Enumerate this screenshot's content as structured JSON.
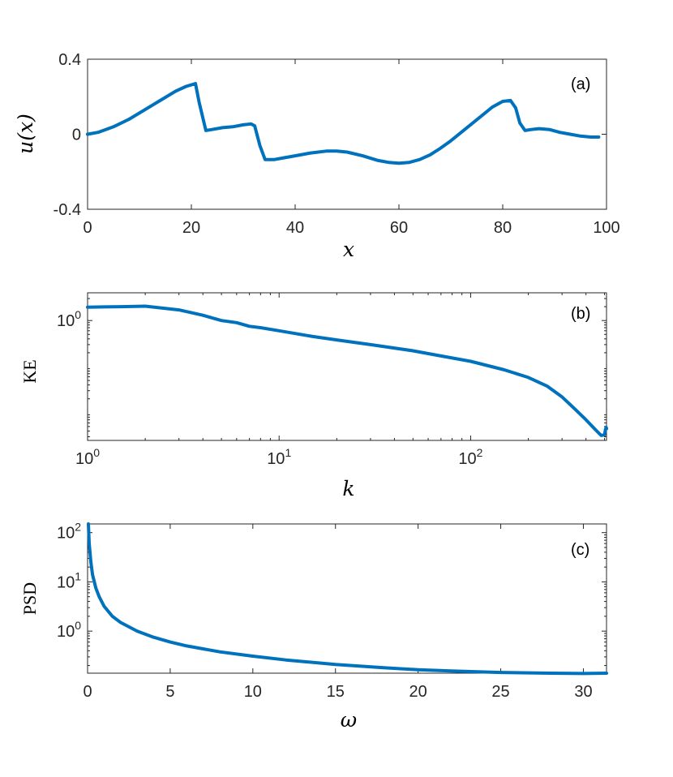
{
  "colors": {
    "line": "#0072BD",
    "axes": "#262626"
  },
  "chart_data": [
    {
      "type": "line",
      "panel_label": "(a)",
      "xlabel": "x",
      "ylabel": "u(x)",
      "xlim": [
        0,
        100
      ],
      "ylim": [
        -0.4,
        0.4
      ],
      "xticks": [
        0,
        20,
        40,
        60,
        80,
        100
      ],
      "xtick_labels": [
        "0",
        "20",
        "40",
        "60",
        "80",
        "100"
      ],
      "yticks": [
        -0.4,
        0,
        0.4
      ],
      "ytick_labels": [
        "-0.4",
        "0",
        "0.4"
      ],
      "series": [
        {
          "x": [
            0,
            2,
            5,
            8,
            11,
            14,
            17,
            19,
            20.8,
            21.5,
            22.8,
            24,
            26,
            28,
            30,
            31.5,
            32.2,
            33.2,
            34.2,
            36,
            38,
            40,
            43,
            46,
            48,
            50,
            53,
            56,
            58,
            60,
            62,
            64,
            66,
            68,
            70,
            72,
            74,
            76,
            78,
            80,
            81.5,
            82.5,
            83.3,
            84.3,
            85.5,
            87,
            89,
            91,
            93,
            95,
            97,
            98.5
          ],
          "y": [
            0.0,
            0.01,
            0.04,
            0.08,
            0.13,
            0.18,
            0.23,
            0.255,
            0.27,
            0.17,
            0.02,
            0.025,
            0.035,
            0.04,
            0.05,
            0.055,
            0.045,
            -0.06,
            -0.135,
            -0.135,
            -0.125,
            -0.115,
            -0.1,
            -0.09,
            -0.09,
            -0.095,
            -0.115,
            -0.14,
            -0.15,
            -0.155,
            -0.15,
            -0.135,
            -0.11,
            -0.075,
            -0.035,
            0.01,
            0.055,
            0.1,
            0.145,
            0.175,
            0.18,
            0.14,
            0.06,
            0.02,
            0.025,
            0.03,
            0.025,
            0.01,
            0.0,
            -0.01,
            -0.015,
            -0.015
          ]
        }
      ]
    },
    {
      "type": "line",
      "panel_label": "(b)",
      "xlabel": "k",
      "ylabel": "KE",
      "xscale": "log",
      "yscale": "log",
      "xlim": [
        1,
        512
      ],
      "ylim": [
        0.0025,
        4.0
      ],
      "xticks": [
        1,
        10,
        100
      ],
      "xtick_bases": [
        "10",
        "10",
        "10"
      ],
      "xtick_exps": [
        "0",
        "1",
        "2"
      ],
      "yticks": [
        1
      ],
      "ytick_bases": [
        "10"
      ],
      "ytick_exps": [
        "0"
      ],
      "series": [
        {
          "x": [
            1,
            1.5,
            2,
            3,
            4,
            5,
            6,
            7,
            8,
            10,
            15,
            20,
            30,
            50,
            70,
            100,
            150,
            200,
            250,
            300,
            350,
            400,
            450,
            480,
            500,
            505,
            510,
            512
          ],
          "y": [
            1.95,
            2.0,
            2.05,
            1.7,
            1.3,
            1.0,
            0.9,
            0.75,
            0.7,
            0.6,
            0.45,
            0.38,
            0.3,
            0.22,
            0.17,
            0.13,
            0.085,
            0.058,
            0.038,
            0.022,
            0.012,
            0.007,
            0.0042,
            0.0032,
            0.0033,
            0.0042,
            0.0048,
            0.0045
          ]
        }
      ]
    },
    {
      "type": "line",
      "panel_label": "(c)",
      "xlabel": "ω",
      "ylabel": "PSD",
      "yscale": "log",
      "xlim": [
        0,
        31.4
      ],
      "ylim": [
        0.14,
        150
      ],
      "xticks": [
        0,
        5,
        10,
        15,
        20,
        25,
        30
      ],
      "xtick_labels": [
        "0",
        "5",
        "10",
        "15",
        "20",
        "25",
        "30"
      ],
      "yticks": [
        1,
        10,
        100
      ],
      "ytick_bases": [
        "10",
        "10",
        "10"
      ],
      "ytick_exps": [
        "0",
        "1",
        "2"
      ],
      "series": [
        {
          "x": [
            0.05,
            0.1,
            0.2,
            0.3,
            0.5,
            0.7,
            1.0,
            1.5,
            2.0,
            3.0,
            4.0,
            5.0,
            6.0,
            8.0,
            10.0,
            12.0,
            15.0,
            18.0,
            20.0,
            22.0,
            25.0,
            28.0,
            30.0,
            31.4
          ],
          "y": [
            150,
            60,
            25,
            14,
            7.5,
            5,
            3.2,
            2.0,
            1.5,
            1.0,
            0.75,
            0.6,
            0.5,
            0.38,
            0.31,
            0.26,
            0.21,
            0.18,
            0.165,
            0.155,
            0.145,
            0.14,
            0.138,
            0.14
          ]
        }
      ]
    }
  ]
}
